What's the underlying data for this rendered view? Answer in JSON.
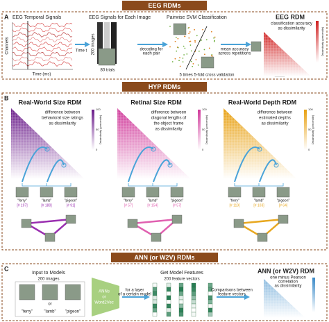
{
  "sections": {
    "eeg": {
      "banner": "EEG RDMs",
      "label": "A",
      "signals_title": "EEG Temporal Signals",
      "channels": "Channels",
      "time_axis": "Time (ms)",
      "per_image_title": "EEG Signals for Each Image",
      "time_t": "Time t",
      "images": "200 images",
      "trials": "80 trials",
      "svm_title": "Pairwise SVM Classification",
      "decoding": [
        "decoding for",
        "each pair"
      ],
      "cv": "5 times 5-fold cross validation",
      "mean": [
        "mean accuracy",
        "across repetitions"
      ],
      "rdm_title": "EEG RDM",
      "rdm_desc": [
        "classification accuracy",
        "as dissimilarity"
      ],
      "colorbar": "Dissimilarity (percentile)"
    },
    "hyp": {
      "banner": "HYP RDMs",
      "label": "B",
      "rdms": [
        {
          "title": "Real-World Size RDM",
          "desc": [
            "difference between",
            "behavioral size ratings",
            "as dissimilarity"
          ],
          "values": [
            "[# 197]",
            "[# 180]",
            "[# 91]"
          ]
        },
        {
          "title": "Retinal Size RDM",
          "desc": [
            "difference between",
            "diagonal lengths of",
            "the object frame",
            "as dissimilarity"
          ],
          "values": [
            "[# 57]",
            "[# 154]",
            "[# 57]"
          ]
        },
        {
          "title": "Real-World Depth RDM",
          "desc": [
            "difference between",
            "estimated depths",
            "as dissimilarity"
          ],
          "values": [
            "[# 119]",
            "[# 103]",
            "[# 64]"
          ]
        }
      ],
      "names": [
        "\"ferry\"",
        "\"lamb\"",
        "\"pigeon\""
      ],
      "colorbar_ticks": [
        "0",
        "50",
        "100"
      ],
      "colorbar": "Dissimilarity (percentile)"
    },
    "ann": {
      "banner": "ANN (or W2V) RDMs",
      "label": "C",
      "input_title": "Input to Models",
      "images": "200 images",
      "names": [
        "\"ferry\"",
        "\"lamb\"",
        "\"pigeon\""
      ],
      "or": "or",
      "model": [
        "ANNs",
        "or",
        "Word2Vec"
      ],
      "layer": [
        "for a layer",
        "of a certain model"
      ],
      "features_title": "Get Model Features",
      "features": "200 feature vectors",
      "compare": [
        "Comparisons between",
        "feature vectors"
      ],
      "rdm_title": "ANN (or W2V) RDM",
      "rdm_desc": [
        "one minus Pearson",
        "correlation",
        "as dissimilarity"
      ]
    }
  }
}
